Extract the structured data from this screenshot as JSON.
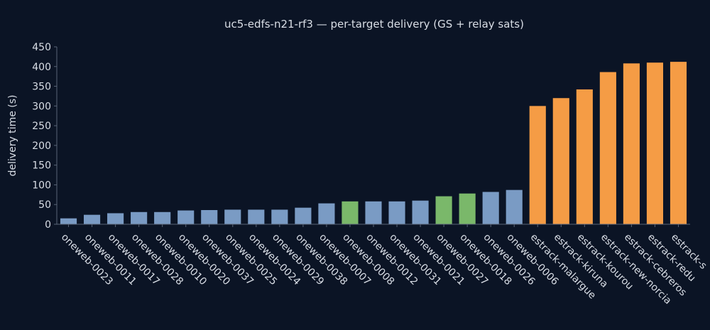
{
  "chart_data": {
    "type": "bar",
    "title": "uc5-edfs-n21-rf3 — per-target delivery (GS + relay sats)",
    "xlabel": "",
    "ylabel": "delivery time (s)",
    "ylim": [
      0,
      450
    ],
    "yticks": [
      0,
      50,
      100,
      150,
      200,
      250,
      300,
      350,
      400,
      450
    ],
    "grid": false,
    "legend": "none",
    "categories": [
      "oneweb-0023",
      "oneweb-0011",
      "oneweb-0017",
      "oneweb-0028",
      "oneweb-0010",
      "oneweb-0020",
      "oneweb-0037",
      "oneweb-0025",
      "oneweb-0024",
      "oneweb-0029",
      "oneweb-0038",
      "oneweb-0007",
      "oneweb-0008",
      "oneweb-0012",
      "oneweb-0031",
      "oneweb-0021",
      "oneweb-0027",
      "oneweb-0018",
      "oneweb-0026",
      "oneweb-0006",
      "estrack-malargue",
      "estrack-kiruna",
      "estrack-kourou",
      "estrack-new-norcia",
      "estrack-cebreros",
      "estrack-redu",
      "estrack-s"
    ],
    "values": [
      15,
      24,
      28,
      31,
      31,
      35,
      36,
      37,
      37,
      37,
      42,
      53,
      58,
      58,
      58,
      60,
      71,
      78,
      82,
      87,
      300,
      320,
      342,
      386,
      408,
      410,
      412
    ],
    "bar_colors": [
      "#7a9bc4",
      "#7a9bc4",
      "#7a9bc4",
      "#7a9bc4",
      "#7a9bc4",
      "#7a9bc4",
      "#7a9bc4",
      "#7a9bc4",
      "#7a9bc4",
      "#7a9bc4",
      "#7a9bc4",
      "#7a9bc4",
      "#7ab86a",
      "#7a9bc4",
      "#7a9bc4",
      "#7a9bc4",
      "#7ab86a",
      "#7ab86a",
      "#7a9bc4",
      "#7a9bc4",
      "#f59c45",
      "#f59c45",
      "#f59c45",
      "#f59c45",
      "#f59c45",
      "#f59c45",
      "#f59c45"
    ]
  },
  "colors": {
    "background": "#0b1425",
    "text": "#d9dee6",
    "axis": "#5a6578",
    "sat_bar": "#7a9bc4",
    "green_bar": "#7ab86a",
    "gs_bar": "#f59c45"
  }
}
